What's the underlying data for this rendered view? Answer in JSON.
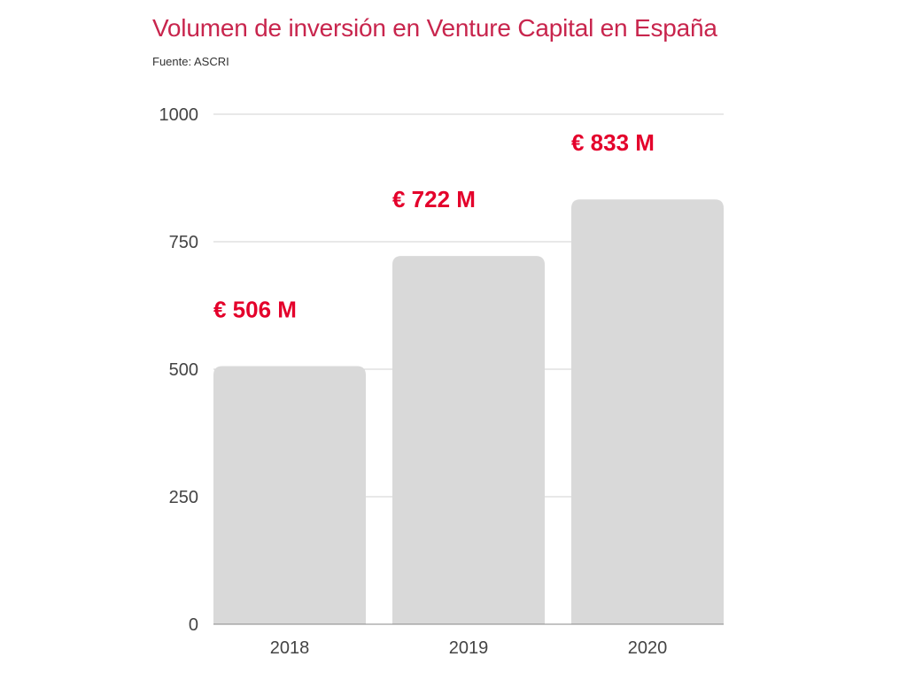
{
  "chart_data": {
    "type": "bar",
    "title": "Volumen de inversión en Venture Capital en España",
    "subtitle": "Fuente: ASCRI",
    "categories": [
      "2018",
      "2019",
      "2020"
    ],
    "values": [
      506,
      722,
      833
    ],
    "data_labels": [
      "€ 506 M",
      "€ 722 M",
      "€ 833 M"
    ],
    "xlabel": "",
    "ylabel": "",
    "ylim": [
      0,
      1000
    ],
    "yticks": [
      0,
      250,
      500,
      750,
      1000
    ],
    "ytick_labels": [
      "0",
      "250",
      "500",
      "750",
      "1000"
    ],
    "grid": true,
    "colors": {
      "bar": "#d9d9d9",
      "label": "#e4002b",
      "title": "#c8254d"
    }
  }
}
